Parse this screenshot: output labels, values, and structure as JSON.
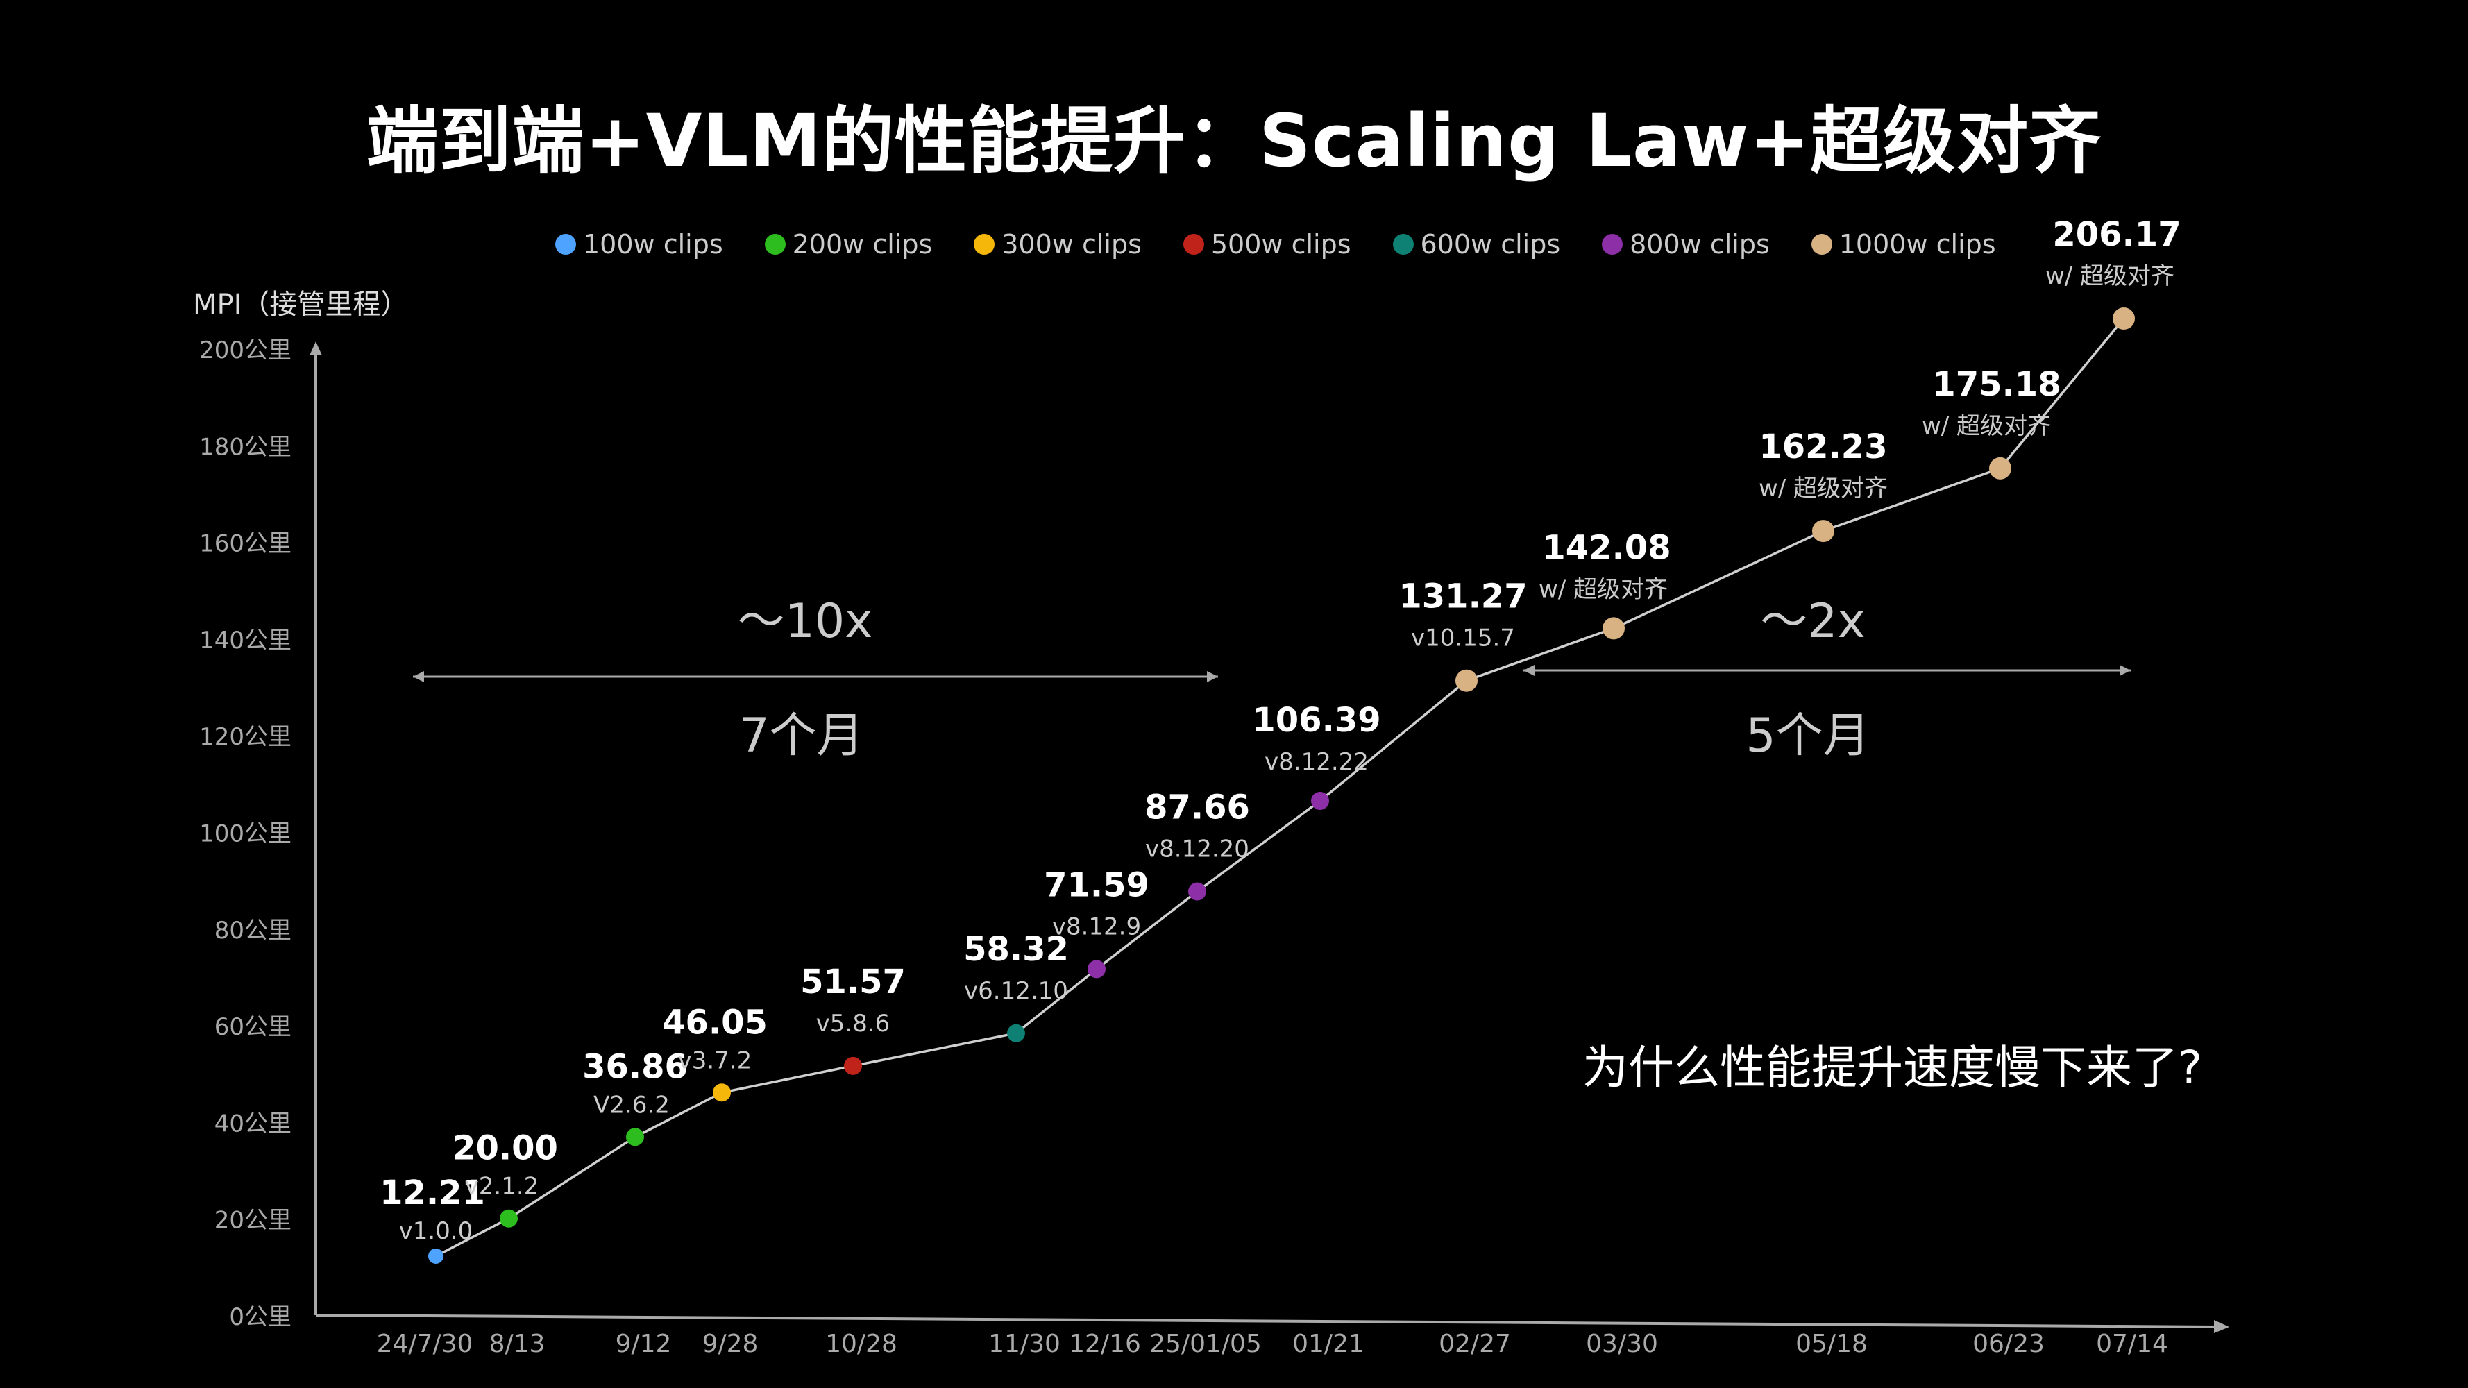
{
  "title": "端到端+VLM的性能提升：Scaling Law+超级对齐",
  "question": "为什么性能提升速度慢下来了?",
  "legend": [
    {
      "label": "100w clips",
      "color": "#4da3ff"
    },
    {
      "label": "200w clips",
      "color": "#2ebd1f"
    },
    {
      "label": "300w clips",
      "color": "#f5b80a"
    },
    {
      "label": "500w clips",
      "color": "#c0231a"
    },
    {
      "label": "600w clips",
      "color": "#0f8074"
    },
    {
      "label": "800w clips",
      "color": "#8d2fa6"
    },
    {
      "label": "1000w clips",
      "color": "#d8b283"
    }
  ],
  "annotations": [
    {
      "ratio": "～10x",
      "duration": "7个月"
    },
    {
      "ratio": "～2x",
      "duration": "5个月"
    }
  ],
  "chart_data": {
    "type": "line",
    "title": "",
    "ylabel": "MPI（接管里程）",
    "xlabel": "",
    "ylim": [
      0,
      200
    ],
    "yticks": [
      "0公里",
      "20公里",
      "40公里",
      "60公里",
      "80公里",
      "100公里",
      "120公里",
      "140公里",
      "160公里",
      "180公里",
      "200公里"
    ],
    "categories": [
      "24/7/30",
      "8/13",
      "9/12",
      "9/28",
      "10/28",
      "11/30",
      "12/16",
      "25/01/05",
      "01/21",
      "02/27",
      "03/30",
      "05/18",
      "06/23",
      "07/14"
    ],
    "values": [
      12.21,
      20.0,
      36.86,
      46.05,
      51.57,
      58.32,
      71.59,
      87.66,
      106.39,
      131.27,
      142.08,
      162.23,
      175.18,
      206.17
    ],
    "value_labels": [
      "12.21",
      "20.00",
      "36.86",
      "46.05",
      "51.57",
      "58.32",
      "71.59",
      "87.66",
      "106.39",
      "131.27",
      "142.08",
      "162.23",
      "175.18",
      "206.17"
    ],
    "point_labels": [
      "v1.0.0",
      "v2.1.2",
      "V2.6.2",
      "v3.7.2",
      "v5.8.6",
      "v6.12.10",
      "v8.12.9",
      "v8.12.20",
      "v8.12.22",
      "v10.15.7",
      "w/ 超级对齐",
      "w/ 超级对齐",
      "w/ 超级对齐",
      "w/ 超级对齐"
    ],
    "point_series": [
      0,
      1,
      1,
      2,
      3,
      4,
      5,
      5,
      5,
      6,
      6,
      6,
      6,
      6
    ],
    "grid": false
  }
}
